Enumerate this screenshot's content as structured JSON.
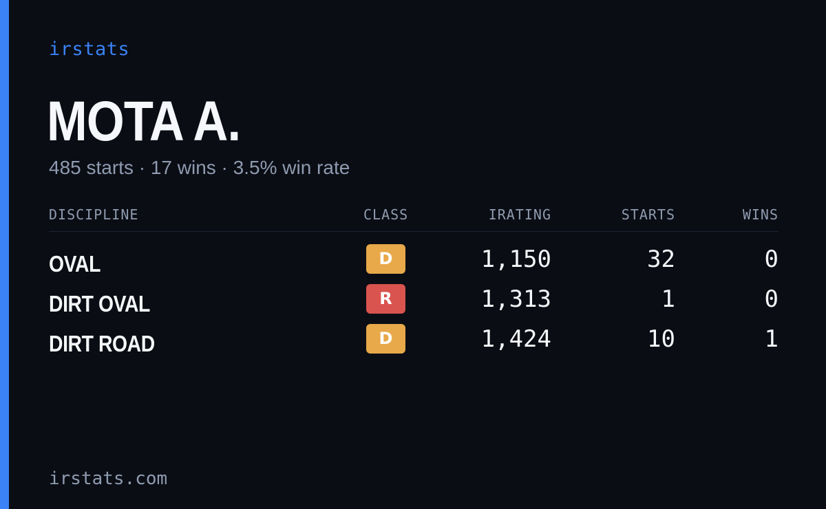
{
  "brand": "irstats",
  "driver": {
    "name": "MOTA A.",
    "summary": "485 starts · 17 wins · 3.5% win rate"
  },
  "table": {
    "headers": {
      "discipline": "DISCIPLINE",
      "class": "CLASS",
      "irating": "IRATING",
      "starts": "STARTS",
      "wins": "WINS"
    },
    "rows": [
      {
        "discipline": "OVAL",
        "class": "D",
        "class_color": "#e8a94a",
        "irating": "1,150",
        "starts": "32",
        "wins": "0"
      },
      {
        "discipline": "DIRT OVAL",
        "class": "R",
        "class_color": "#d9534f",
        "irating": "1,313",
        "starts": "1",
        "wins": "0"
      },
      {
        "discipline": "DIRT ROAD",
        "class": "D",
        "class_color": "#e8a94a",
        "irating": "1,424",
        "starts": "10",
        "wins": "1"
      }
    ]
  },
  "footer": "irstats.com",
  "colors": {
    "accent": "#3b82f6",
    "background": "#0a0d14",
    "muted": "#8f9bb0"
  }
}
